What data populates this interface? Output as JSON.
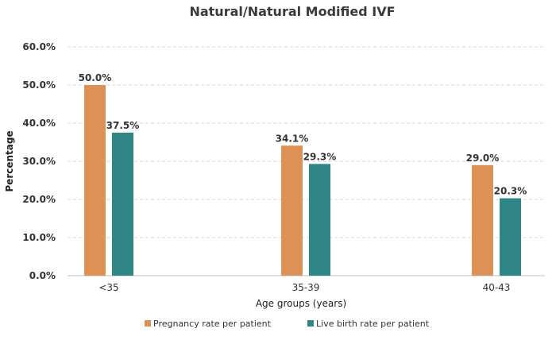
{
  "chart_data": {
    "type": "bar",
    "title": "Natural/Natural Modified IVF",
    "xlabel": "Age groups (years)",
    "ylabel": "Percentage",
    "categories": [
      "<35",
      "35-39",
      "40-43"
    ],
    "ylim": [
      0,
      60
    ],
    "yticks": [
      "0.0%",
      "10.0%",
      "20.0%",
      "30.0%",
      "40.0%",
      "50.0%",
      "60.0%"
    ],
    "grid": true,
    "legend_position": "bottom",
    "series": [
      {
        "name": "Pregnancy rate per patient",
        "color": "#DE9155",
        "values": [
          50.0,
          34.1,
          29.0
        ],
        "labels": [
          "50.0%",
          "34.1%",
          "29.0%"
        ]
      },
      {
        "name": "Live birth rate per patient",
        "color": "#308684",
        "values": [
          37.5,
          29.3,
          20.3
        ],
        "labels": [
          "37.5%",
          "29.3%",
          "20.3%"
        ]
      }
    ]
  }
}
